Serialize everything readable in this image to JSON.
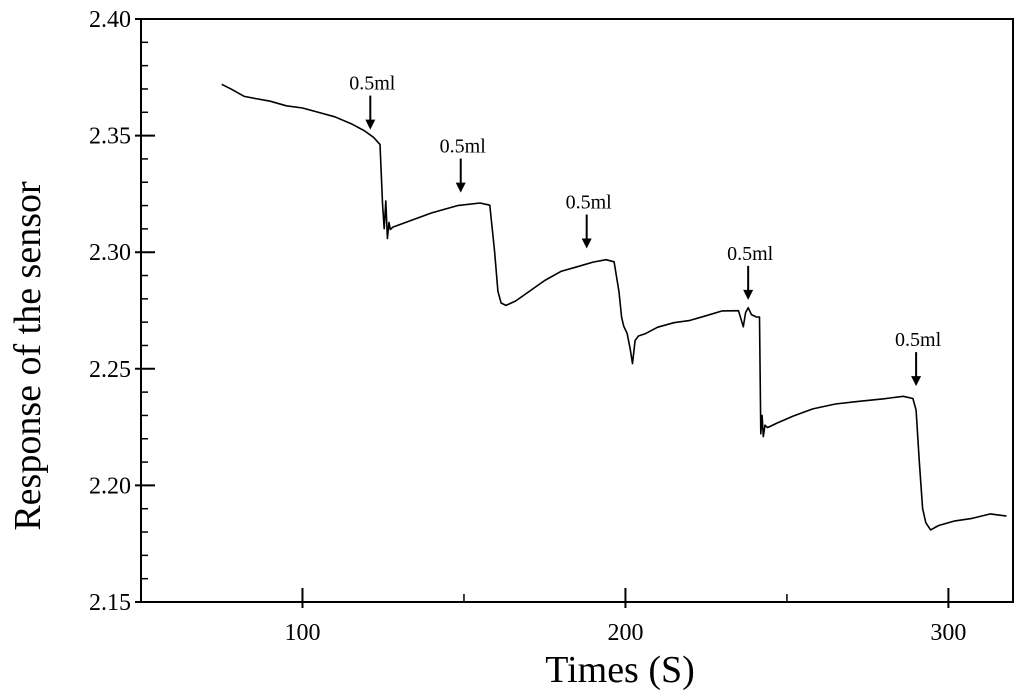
{
  "chart_data": {
    "type": "line",
    "title": "",
    "xlabel": "Times (S)",
    "ylabel": "Response of the sensor",
    "xlim": [
      50,
      320
    ],
    "ylim": [
      2.15,
      2.4
    ],
    "x_ticks": [
      {
        "value": 100,
        "label": "100"
      },
      {
        "value": 200,
        "label": "200"
      },
      {
        "value": 300,
        "label": "300"
      }
    ],
    "x_minor_ticks": [
      50,
      150,
      250
    ],
    "y_ticks": [
      {
        "value": 2.15,
        "label": "2.15"
      },
      {
        "value": 2.2,
        "label": "2.20"
      },
      {
        "value": 2.25,
        "label": "2.25"
      },
      {
        "value": 2.3,
        "label": "2.30"
      },
      {
        "value": 2.35,
        "label": "2.35"
      },
      {
        "value": 2.4,
        "label": "2.40"
      }
    ],
    "y_minor_ticks": [
      2.16,
      2.17,
      2.18,
      2.19,
      2.21,
      2.22,
      2.23,
      2.24,
      2.26,
      2.27,
      2.28,
      2.29,
      2.31,
      2.32,
      2.33,
      2.34,
      2.36,
      2.37,
      2.38,
      2.39
    ],
    "grid": false,
    "series": [
      {
        "x": [
          75,
          78,
          82,
          86,
          90,
          95,
          100,
          105,
          110,
          115,
          119,
          122,
          124,
          124.8,
          125.3,
          125.8,
          126.3,
          126.8,
          127.2,
          128,
          132,
          140,
          148,
          155,
          158,
          159.5,
          160.5,
          161.5,
          163,
          166,
          170,
          175,
          180,
          185,
          190,
          194,
          196.5,
          198,
          198.8,
          199.5,
          200.5,
          201.5,
          202.2,
          203,
          204,
          206,
          210,
          215,
          220,
          225,
          230,
          235,
          236.5,
          237.2,
          238,
          239,
          240.5,
          241.5,
          241.9,
          242.3,
          242.7,
          243.2,
          244,
          247,
          252,
          258,
          265,
          272,
          280,
          286,
          289,
          290,
          291,
          292,
          293,
          294.5,
          297,
          302,
          307,
          313,
          318
        ],
        "y": [
          2.372,
          2.37,
          2.367,
          2.366,
          2.365,
          2.363,
          2.362,
          2.36,
          2.358,
          2.355,
          2.352,
          2.349,
          2.346,
          2.32,
          2.31,
          2.322,
          2.306,
          2.313,
          2.31,
          2.311,
          2.313,
          2.317,
          2.32,
          2.321,
          2.32,
          2.3,
          2.283,
          2.278,
          2.277,
          2.279,
          2.283,
          2.288,
          2.292,
          2.294,
          2.296,
          2.297,
          2.296,
          2.283,
          2.272,
          2.268,
          2.265,
          2.258,
          2.252,
          2.262,
          2.264,
          2.265,
          2.268,
          2.27,
          2.271,
          2.273,
          2.275,
          2.275,
          2.268,
          2.274,
          2.276,
          2.273,
          2.272,
          2.272,
          2.222,
          2.23,
          2.221,
          2.226,
          2.225,
          2.227,
          2.23,
          2.233,
          2.235,
          2.236,
          2.237,
          2.238,
          2.237,
          2.232,
          2.21,
          2.19,
          2.184,
          2.181,
          2.183,
          2.185,
          2.186,
          2.188,
          2.187
        ]
      }
    ],
    "annotations": [
      {
        "label": "0.5ml",
        "x": 121,
        "y": 2.35
      },
      {
        "label": "0.5ml",
        "x": 149,
        "y": 2.323
      },
      {
        "label": "0.5ml",
        "x": 188,
        "y": 2.299
      },
      {
        "label": "0.5ml",
        "x": 238,
        "y": 2.277
      },
      {
        "label": "0.5ml",
        "x": 290,
        "y": 2.24
      }
    ]
  }
}
